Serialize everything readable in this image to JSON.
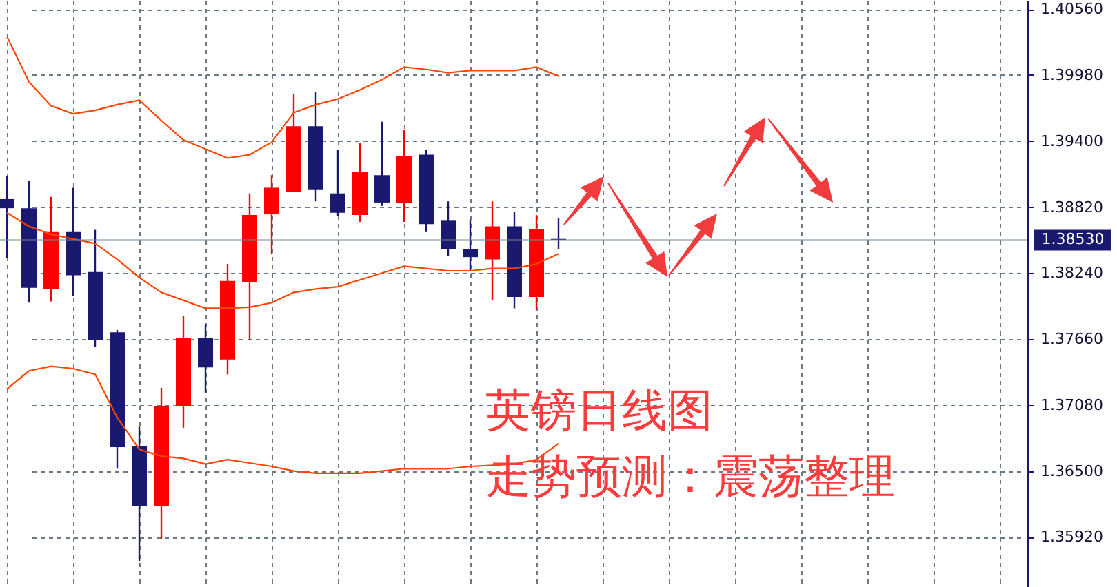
{
  "chart_data": {
    "type": "candlestick",
    "categories": [
      null,
      null,
      null,
      null,
      null,
      null,
      null,
      null,
      null,
      null,
      null,
      null,
      null,
      null,
      null,
      null,
      null,
      null,
      null,
      null,
      null,
      null,
      null,
      null,
      null,
      null,
      null,
      null,
      null,
      null,
      null,
      null,
      null,
      null,
      null,
      null,
      null,
      null,
      null,
      null,
      null,
      null,
      null,
      null,
      null,
      null
    ],
    "ohlc": [
      [
        1.3889,
        1.3909,
        1.3837,
        1.3881
      ],
      [
        1.3881,
        1.3905,
        1.3798,
        1.3811
      ],
      [
        1.381,
        1.3891,
        1.3799,
        1.386
      ],
      [
        1.386,
        1.3899,
        1.3804,
        1.3822
      ],
      [
        1.3825,
        1.3862,
        1.3759,
        1.3765
      ],
      [
        1.3772,
        1.3774,
        1.3652,
        1.3671
      ],
      [
        1.3672,
        1.3689,
        1.3571,
        1.3619
      ],
      [
        1.3619,
        1.3723,
        1.359,
        1.3707
      ],
      [
        1.3707,
        1.3786,
        1.3688,
        1.3767
      ],
      [
        1.3767,
        1.3779,
        1.3719,
        1.3741
      ],
      [
        1.3748,
        1.3832,
        1.3735,
        1.3817
      ],
      [
        1.3816,
        1.3894,
        1.3765,
        1.3875
      ],
      [
        1.3876,
        1.391,
        1.3841,
        1.3899
      ],
      [
        1.3895,
        1.3981,
        1.3895,
        1.3953
      ],
      [
        1.3953,
        1.3983,
        1.3887,
        1.3897
      ],
      [
        1.3894,
        1.3932,
        1.3874,
        1.3877
      ],
      [
        1.3875,
        1.3938,
        1.3869,
        1.3913
      ],
      [
        1.391,
        1.3957,
        1.3883,
        1.3886
      ],
      [
        1.3886,
        1.395,
        1.3869,
        1.3927
      ],
      [
        1.3928,
        1.3932,
        1.386,
        1.3867
      ],
      [
        1.387,
        1.3887,
        1.3839,
        1.3845
      ],
      [
        1.3845,
        1.3871,
        1.3826,
        1.3838
      ],
      [
        1.3836,
        1.3887,
        1.38,
        1.3865
      ],
      [
        1.3865,
        1.3878,
        1.3793,
        1.3803
      ],
      [
        1.3803,
        1.3875,
        1.3792,
        1.3863
      ],
      [
        1.3854,
        1.3872,
        1.3845,
        1.3853
      ],
      null,
      null,
      null,
      null,
      null,
      null,
      null,
      null,
      null,
      null,
      null,
      null,
      null,
      null,
      null,
      null,
      null,
      null,
      null,
      null
    ],
    "colors": [
      "#191970",
      "#191970",
      "#ff0000",
      "#191970",
      "#191970",
      "#191970",
      "#191970",
      "#ff0000",
      "#ff0000",
      "#191970",
      "#ff0000",
      "#ff0000",
      "#ff0000",
      "#ff0000",
      "#191970",
      "#191970",
      "#ff0000",
      "#191970",
      "#ff0000",
      "#191970",
      "#191970",
      "#191970",
      "#ff0000",
      "#191970",
      "#ff0000",
      "#191970",
      null,
      null,
      null,
      null,
      null,
      null,
      null,
      null,
      null,
      null,
      null,
      null,
      null,
      null,
      null,
      null,
      null,
      null,
      null,
      null
    ],
    "series": [
      {
        "type": "line",
        "color": "#ff4500",
        "values": [
          1.4032,
          1.3992,
          1.3971,
          1.3964,
          1.3967,
          1.3972,
          1.3976,
          1.3958,
          1.3941,
          1.3933,
          1.3925,
          1.3928,
          1.3939,
          1.3965,
          1.3972,
          1.3977,
          1.3985,
          1.3994,
          1.4005,
          1.4003,
          1.4,
          1.4002,
          1.4002,
          1.4002,
          1.4005,
          1.3997,
          null,
          null,
          null,
          null,
          null,
          null,
          null,
          null,
          null,
          null,
          null,
          null,
          null,
          null,
          null,
          null,
          null,
          null,
          null,
          null
        ]
      },
      {
        "type": "line",
        "color": "#ff4500",
        "values": [
          1.3877,
          1.3865,
          1.3858,
          1.3854,
          1.385,
          1.3836,
          1.382,
          1.3807,
          1.38,
          1.3793,
          1.3793,
          1.3794,
          1.3798,
          1.3807,
          1.381,
          1.3812,
          1.3818,
          1.3824,
          1.383,
          1.3828,
          1.3826,
          1.3826,
          1.3828,
          1.3828,
          1.3832,
          1.3841,
          null,
          null,
          null,
          null,
          null,
          null,
          null,
          null,
          null,
          null,
          null,
          null,
          null,
          null,
          null,
          null,
          null,
          null,
          null,
          null
        ]
      },
      {
        "type": "line",
        "color": "#ff4500",
        "values": [
          1.3722,
          1.3738,
          1.3742,
          1.374,
          1.3735,
          1.3697,
          1.3669,
          1.3663,
          1.3661,
          1.3656,
          1.366,
          1.3657,
          1.3654,
          1.365,
          1.3648,
          1.3648,
          1.3648,
          1.365,
          1.3652,
          1.3652,
          1.3652,
          1.3654,
          1.3655,
          1.3656,
          1.366,
          1.3674,
          null,
          null,
          null,
          null,
          null,
          null,
          null,
          null,
          null,
          null,
          null,
          null,
          null,
          null,
          null,
          null,
          null,
          null,
          null,
          null
        ]
      }
    ],
    "ylim": [
      1.3548,
      1.4064
    ],
    "yticks": [
      {
        "value": 1.3592,
        "label": "1.35920"
      },
      {
        "value": 1.365,
        "label": "1.36500"
      },
      {
        "value": 1.3708,
        "label": "1.37080"
      },
      {
        "value": 1.3766,
        "label": "1.37660"
      },
      {
        "value": 1.3824,
        "label": "1.38240"
      },
      {
        "value": 1.3882,
        "label": "1.38820"
      },
      {
        "value": 1.394,
        "label": "1.39400"
      },
      {
        "value": 1.3998,
        "label": "1.39980"
      },
      {
        "value": 1.4056,
        "label": "1.40560"
      }
    ],
    "tick_labels": "y",
    "grid": true,
    "ref_lines": [
      {
        "axis": "y",
        "value": 1.3853,
        "label": "1.38530",
        "color": "#778899"
      }
    ],
    "annotations": [
      "英镑日线图",
      "走势预测：震荡整理"
    ]
  }
}
